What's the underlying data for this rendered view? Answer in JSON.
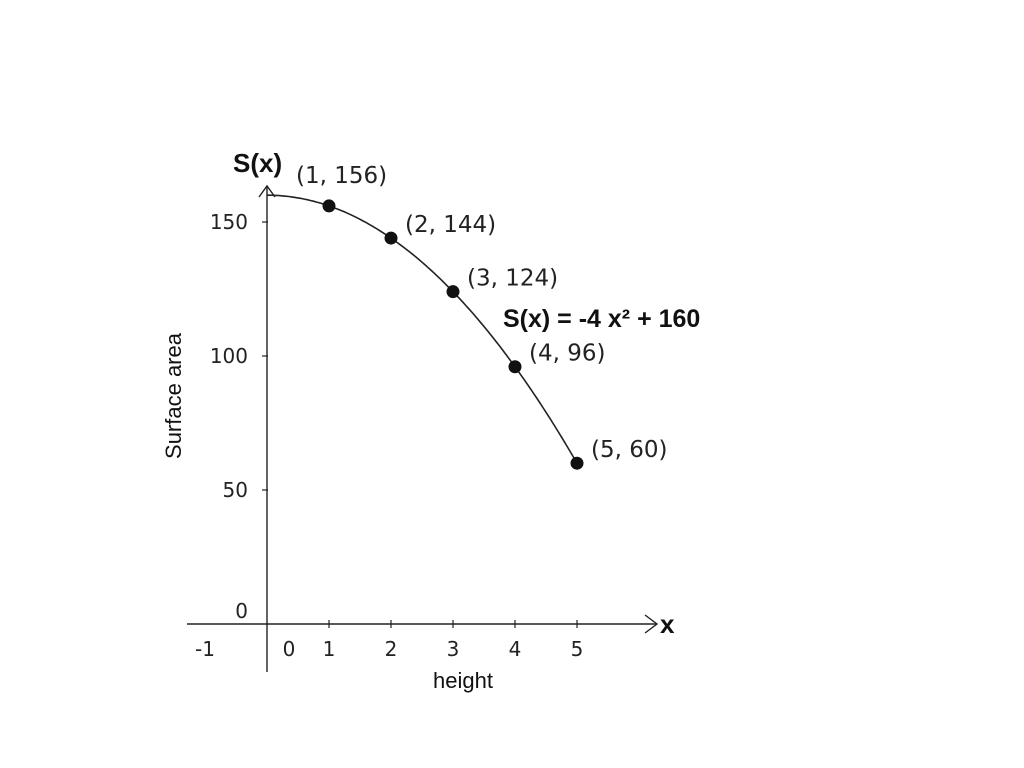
{
  "chart_data": {
    "type": "line",
    "title": "",
    "xlabel": "height",
    "ylabel": "Surface area",
    "x_axis_name": "x",
    "y_axis_name": "S(x)",
    "equation": "S(x) = -4 x² + 160",
    "xlim": [
      -1,
      5.8
    ],
    "ylim": [
      -17,
      162
    ],
    "x_ticks": [
      "-1",
      "0",
      "1",
      "2",
      "3",
      "4",
      "5"
    ],
    "y_ticks": [
      "0",
      "50",
      "100",
      "150"
    ],
    "grid": false,
    "series": [
      {
        "curve": "S(x) = -4x^2 + 160",
        "x": [
          0,
          1,
          2,
          3,
          4,
          5
        ],
        "y": [
          160,
          156,
          144,
          124,
          96,
          60
        ]
      }
    ],
    "points": [
      {
        "x": 1,
        "y": 156,
        "label": "(1, 156)"
      },
      {
        "x": 2,
        "y": 144,
        "label": "(2, 144)"
      },
      {
        "x": 3,
        "y": 124,
        "label": "(3, 124)"
      },
      {
        "x": 4,
        "y": 96,
        "label": "(4, 96)"
      },
      {
        "x": 5,
        "y": 60,
        "label": "(5, 60)"
      }
    ]
  }
}
